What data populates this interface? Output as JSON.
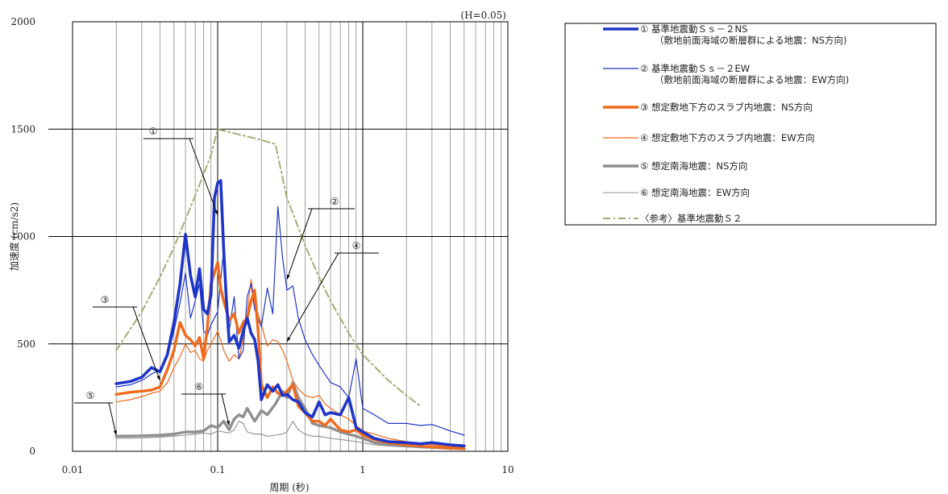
{
  "chart_data": {
    "type": "line",
    "xscale": "log",
    "xlim": [
      0.01,
      10
    ],
    "ylim": [
      0,
      2000
    ],
    "xticks": [
      0.01,
      0.1,
      1,
      10
    ],
    "xtick_labels": [
      "0.01",
      "0.1",
      "1",
      "10"
    ],
    "yticks": [
      0,
      500,
      1000,
      1500,
      2000
    ],
    "ytick_labels": [
      "0",
      "500",
      "1000",
      "1500",
      "2000"
    ],
    "xlabel": "周期 (秒)",
    "ylabel": "加速度 (cm/s2)",
    "annotation": "(H=0.05)",
    "grid": true,
    "legend_position": "right",
    "series": [
      {
        "id": "s1",
        "legend": [
          "① 基準地震動Ｓｓ－２NS",
          "（敷地前面海域の断層群による地震：NS方向)"
        ],
        "color": "#1f35c8",
        "width": 3.6,
        "dash": "",
        "x": [
          0.02,
          0.025,
          0.03,
          0.035,
          0.04,
          0.045,
          0.05,
          0.055,
          0.06,
          0.065,
          0.07,
          0.075,
          0.08,
          0.085,
          0.09,
          0.095,
          0.1,
          0.105,
          0.11,
          0.115,
          0.12,
          0.13,
          0.14,
          0.15,
          0.16,
          0.17,
          0.18,
          0.19,
          0.2,
          0.22,
          0.24,
          0.26,
          0.28,
          0.3,
          0.33,
          0.36,
          0.4,
          0.45,
          0.5,
          0.55,
          0.6,
          0.7,
          0.8,
          0.9,
          1.0,
          1.2,
          1.5,
          2.0,
          2.5,
          3.0,
          4.0,
          5.0
        ],
        "y": [
          315,
          325,
          345,
          390,
          370,
          450,
          600,
          780,
          1010,
          820,
          720,
          850,
          660,
          640,
          730,
          1180,
          1250,
          1260,
          940,
          700,
          510,
          540,
          480,
          560,
          620,
          550,
          520,
          420,
          240,
          310,
          280,
          310,
          260,
          265,
          240,
          230,
          180,
          160,
          230,
          170,
          180,
          170,
          250,
          110,
          90,
          60,
          45,
          40,
          35,
          40,
          30,
          25
        ]
      },
      {
        "id": "s2",
        "legend": [
          "② 基準地震動Ｓｓ－２EW",
          "（敷地前面海域の断層群による地震：EW方向)"
        ],
        "color": "#1f35c8",
        "width": 1.2,
        "dash": "",
        "x": [
          0.02,
          0.025,
          0.03,
          0.035,
          0.04,
          0.045,
          0.05,
          0.055,
          0.06,
          0.065,
          0.07,
          0.075,
          0.08,
          0.085,
          0.09,
          0.1,
          0.11,
          0.12,
          0.13,
          0.14,
          0.15,
          0.16,
          0.17,
          0.18,
          0.2,
          0.22,
          0.24,
          0.26,
          0.28,
          0.3,
          0.33,
          0.36,
          0.4,
          0.45,
          0.5,
          0.6,
          0.7,
          0.8,
          0.9,
          1.0,
          1.2,
          1.5,
          2.0,
          2.5,
          3.0,
          4.0,
          5.0
        ],
        "y": [
          300,
          310,
          330,
          360,
          380,
          440,
          560,
          690,
          830,
          620,
          700,
          780,
          560,
          540,
          590,
          650,
          940,
          560,
          720,
          430,
          470,
          720,
          780,
          660,
          580,
          760,
          640,
          1140,
          900,
          750,
          770,
          620,
          520,
          450,
          400,
          320,
          300,
          250,
          430,
          200,
          170,
          130,
          130,
          120,
          125,
          95,
          75
        ]
      },
      {
        "id": "s3",
        "legend": [
          "③ 想定敷地下方のスラブ内地震：NS方向"
        ],
        "color": "#f06a1c",
        "width": 3.4,
        "dash": "",
        "x": [
          0.02,
          0.025,
          0.03,
          0.035,
          0.04,
          0.045,
          0.05,
          0.055,
          0.06,
          0.065,
          0.07,
          0.075,
          0.08,
          0.085,
          0.09,
          0.095,
          0.1,
          0.105,
          0.11,
          0.12,
          0.13,
          0.14,
          0.15,
          0.16,
          0.17,
          0.18,
          0.19,
          0.2,
          0.22,
          0.24,
          0.26,
          0.28,
          0.3,
          0.33,
          0.36,
          0.4,
          0.45,
          0.5,
          0.55,
          0.6,
          0.7,
          0.8,
          0.9,
          1.0,
          1.2,
          1.5,
          2.0,
          2.5,
          3.0,
          4.0,
          5.0
        ],
        "y": [
          265,
          275,
          280,
          285,
          300,
          380,
          470,
          600,
          540,
          520,
          490,
          530,
          430,
          580,
          780,
          830,
          880,
          760,
          700,
          610,
          640,
          550,
          600,
          620,
          700,
          750,
          560,
          310,
          250,
          300,
          270,
          260,
          280,
          310,
          210,
          180,
          140,
          140,
          120,
          150,
          100,
          90,
          100,
          75,
          55,
          40,
          30,
          25,
          20,
          15,
          12
        ]
      },
      {
        "id": "s4",
        "legend": [
          "④ 想定敷地下方のスラブ内地震：EW方向"
        ],
        "color": "#f06a1c",
        "width": 1.2,
        "dash": "",
        "x": [
          0.02,
          0.025,
          0.03,
          0.035,
          0.04,
          0.045,
          0.05,
          0.055,
          0.06,
          0.065,
          0.07,
          0.075,
          0.08,
          0.085,
          0.09,
          0.1,
          0.11,
          0.12,
          0.13,
          0.14,
          0.15,
          0.16,
          0.17,
          0.18,
          0.2,
          0.22,
          0.24,
          0.26,
          0.28,
          0.3,
          0.33,
          0.36,
          0.4,
          0.45,
          0.5,
          0.55,
          0.6,
          0.7,
          0.8,
          0.9,
          1.0,
          1.2,
          1.5,
          2.0,
          2.5,
          3.0,
          4.0,
          5.0
        ],
        "y": [
          230,
          240,
          255,
          270,
          280,
          320,
          390,
          440,
          500,
          460,
          470,
          430,
          420,
          470,
          500,
          560,
          470,
          420,
          450,
          430,
          520,
          640,
          800,
          690,
          590,
          490,
          520,
          510,
          470,
          420,
          330,
          290,
          260,
          250,
          260,
          220,
          200,
          170,
          150,
          120,
          95,
          80,
          60,
          45,
          35,
          30,
          22,
          18
        ]
      },
      {
        "id": "s5",
        "legend": [
          "⑤ 想定南海地震：NS方向"
        ],
        "color": "#8f8f8f",
        "width": 3.4,
        "dash": "",
        "x": [
          0.02,
          0.03,
          0.04,
          0.05,
          0.06,
          0.07,
          0.08,
          0.09,
          0.1,
          0.11,
          0.12,
          0.13,
          0.14,
          0.15,
          0.16,
          0.18,
          0.2,
          0.22,
          0.25,
          0.28,
          0.3,
          0.33,
          0.36,
          0.4,
          0.45,
          0.5,
          0.6,
          0.7,
          0.8,
          0.9,
          1.0,
          1.2,
          1.5,
          2.0,
          2.5,
          3.0,
          4.0,
          5.0
        ],
        "y": [
          70,
          72,
          75,
          80,
          90,
          90,
          95,
          120,
          110,
          140,
          100,
          150,
          170,
          160,
          200,
          140,
          190,
          170,
          220,
          280,
          250,
          320,
          250,
          200,
          130,
          120,
          110,
          90,
          80,
          70,
          60,
          40,
          30,
          25,
          20,
          18,
          14,
          12
        ]
      },
      {
        "id": "s6",
        "legend": [
          "⑥ 想定南海地震：EW方向"
        ],
        "color": "#8f8f8f",
        "width": 1.1,
        "dash": "",
        "x": [
          0.02,
          0.03,
          0.04,
          0.05,
          0.06,
          0.07,
          0.08,
          0.09,
          0.1,
          0.11,
          0.12,
          0.13,
          0.14,
          0.15,
          0.16,
          0.18,
          0.2,
          0.22,
          0.25,
          0.28,
          0.3,
          0.33,
          0.36,
          0.4,
          0.45,
          0.5,
          0.6,
          0.7,
          0.8,
          0.9,
          1.0,
          1.2,
          1.5,
          2.0,
          2.5,
          3.0,
          4.0,
          5.0
        ],
        "y": [
          60,
          62,
          66,
          70,
          75,
          80,
          85,
          80,
          95,
          90,
          85,
          100,
          140,
          130,
          90,
          80,
          80,
          70,
          75,
          80,
          90,
          140,
          100,
          80,
          70,
          70,
          60,
          55,
          50,
          45,
          40,
          30,
          25,
          20,
          18,
          15,
          12,
          10
        ]
      },
      {
        "id": "s7",
        "legend": [
          "〈参考〉基準地震動Ｓ２"
        ],
        "color": "#a6ad74",
        "width": 2.0,
        "dash": "9,4,2,4",
        "x": [
          0.02,
          0.03,
          0.04,
          0.05,
          0.06,
          0.07,
          0.08,
          0.09,
          0.1,
          0.15,
          0.2,
          0.25,
          0.3,
          0.4,
          0.5,
          0.6,
          0.7,
          0.8,
          1.0,
          1.5,
          2.0,
          2.5
        ],
        "y": [
          470,
          650,
          810,
          950,
          1080,
          1190,
          1290,
          1380,
          1500,
          1470,
          1450,
          1430,
          1180,
          960,
          810,
          700,
          620,
          550,
          450,
          330,
          260,
          210
        ]
      }
    ],
    "callouts": [
      {
        "label": "①",
        "series": "s1",
        "at_x": 0.1,
        "at_y": 1100
      },
      {
        "label": "②",
        "series": "s2",
        "at_x": 0.3,
        "at_y": 800
      },
      {
        "label": "③",
        "series": "s3",
        "at_x": 0.04,
        "at_y": 330
      },
      {
        "label": "④",
        "series": "s4",
        "at_x": 0.3,
        "at_y": 510
      },
      {
        "label": "⑤",
        "series": "s5",
        "at_x": 0.02,
        "at_y": 75
      },
      {
        "label": "⑥",
        "series": "s6",
        "at_x": 0.12,
        "at_y": 120
      }
    ]
  }
}
